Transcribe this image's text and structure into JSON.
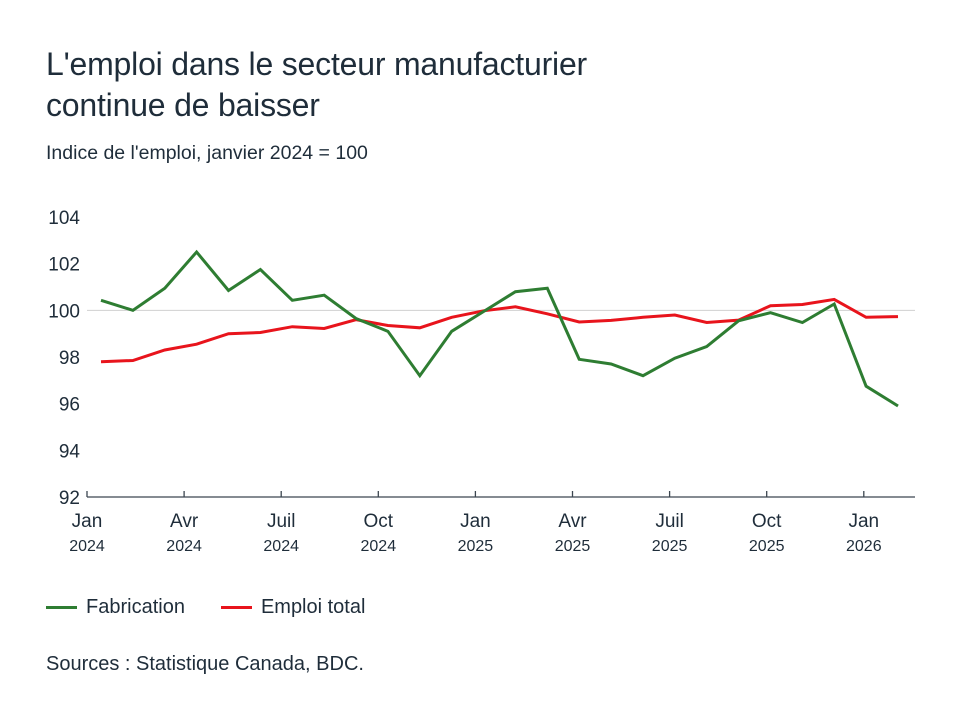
{
  "header": {
    "title_line1": "L'emploi dans le secteur manufacturier",
    "title_line2": "continue de baisser",
    "subtitle": "Indice de l'emploi, janvier 2024 = 100"
  },
  "legend": {
    "items": [
      {
        "label": "Fabrication",
        "color": "#2e7d32"
      },
      {
        "label": "Emploi total",
        "color": "#e8141c"
      }
    ]
  },
  "footer": {
    "source": "Sources : Statistique Canada, BDC."
  },
  "chart_data": {
    "type": "line",
    "title": "L'emploi dans le secteur manufacturier continue de baisser",
    "subtitle": "Indice de l'emploi, janvier 2024 = 100",
    "xlabel": "",
    "ylabel": "",
    "ylim": [
      92,
      104
    ],
    "yticks": [
      92,
      94,
      96,
      98,
      100,
      102,
      104
    ],
    "reference_line": 100,
    "grid": false,
    "legend_position": "bottom-left",
    "x": [
      "2024-01",
      "2024-02",
      "2024-03",
      "2024-04",
      "2024-05",
      "2024-06",
      "2024-07",
      "2024-08",
      "2024-09",
      "2024-10",
      "2024-11",
      "2024-12",
      "2025-01",
      "2025-02",
      "2025-03",
      "2025-04",
      "2025-05",
      "2025-06",
      "2025-07",
      "2025-08",
      "2025-09",
      "2025-10",
      "2025-11",
      "2025-12",
      "2026-01",
      "2026-02"
    ],
    "xticks": [
      {
        "month": "Jan",
        "year": "2024",
        "index": 0
      },
      {
        "month": "Avr",
        "year": "2024",
        "index": 3
      },
      {
        "month": "Juil",
        "year": "2024",
        "index": 6
      },
      {
        "month": "Oct",
        "year": "2024",
        "index": 9
      },
      {
        "month": "Jan",
        "year": "2025",
        "index": 12
      },
      {
        "month": "Avr",
        "year": "2025",
        "index": 15
      },
      {
        "month": "Juil",
        "year": "2025",
        "index": 18
      },
      {
        "month": "Oct",
        "year": "2025",
        "index": 21
      },
      {
        "month": "Jan",
        "year": "2026",
        "index": 24
      }
    ],
    "series": [
      {
        "name": "Fabrication",
        "color": "#2e7d32",
        "values": [
          100.43,
          100.0,
          100.95,
          102.5,
          100.85,
          101.75,
          100.43,
          100.65,
          99.65,
          99.1,
          97.2,
          99.1,
          99.95,
          100.8,
          100.95,
          97.9,
          97.7,
          97.2,
          97.95,
          98.45,
          99.55,
          99.9,
          99.48,
          100.27,
          96.75,
          95.9
        ]
      },
      {
        "name": "Emploi total",
        "color": "#e8141c",
        "values": [
          97.8,
          97.85,
          98.3,
          98.55,
          99.0,
          99.05,
          99.3,
          99.22,
          99.6,
          99.35,
          99.25,
          99.7,
          99.98,
          100.15,
          99.85,
          99.5,
          99.57,
          99.7,
          99.8,
          99.48,
          99.58,
          100.2,
          100.25,
          100.47,
          99.7,
          99.73
        ]
      }
    ]
  }
}
